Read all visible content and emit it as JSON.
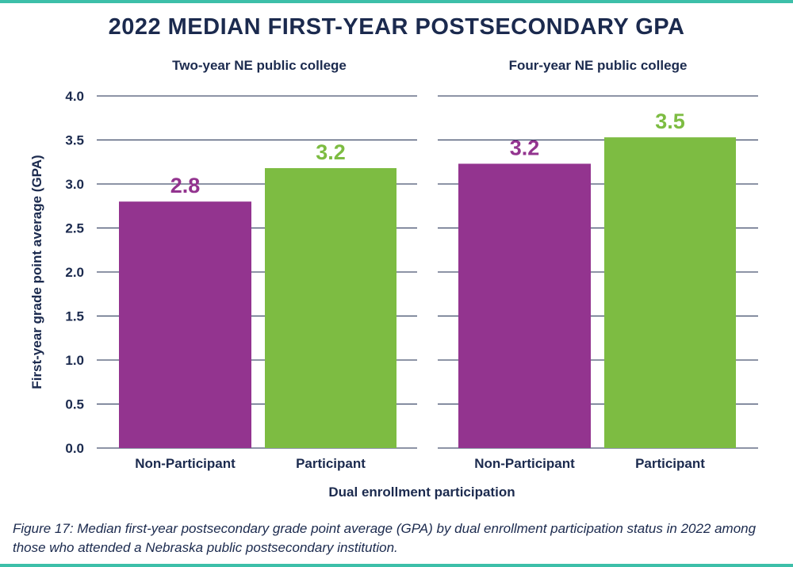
{
  "figure": {
    "caption": "Figure 17: Median first-year postsecondary grade point average (GPA) by dual enrollment participation status in 2022 among those who attended a Nebraska public postsecondary institution."
  },
  "chart_data": {
    "type": "bar",
    "title": "2022 MEDIAN FIRST-YEAR POSTSECONDARY GPA",
    "xlabel": "Dual enrollment participation",
    "ylabel": "First-year grade point average (GPA)",
    "ylim": [
      0,
      4.0
    ],
    "yticks": [
      "0.0",
      "0.5",
      "1.0",
      "1.5",
      "2.0",
      "2.5",
      "3.0",
      "3.5",
      "4.0"
    ],
    "colors": {
      "Non-Participant": "#93348f",
      "Participant": "#7dbc42",
      "text": "#1b2a4e",
      "grid": "#1b2a4e"
    },
    "panels": [
      {
        "title": "Two-year NE public college",
        "categories": [
          "Non-Participant",
          "Participant"
        ],
        "values": [
          2.8,
          3.18
        ],
        "labels": [
          "2.8",
          "3.2"
        ]
      },
      {
        "title": "Four-year NE public college",
        "categories": [
          "Non-Participant",
          "Participant"
        ],
        "values": [
          3.23,
          3.53
        ],
        "labels": [
          "3.2",
          "3.5"
        ]
      }
    ]
  }
}
